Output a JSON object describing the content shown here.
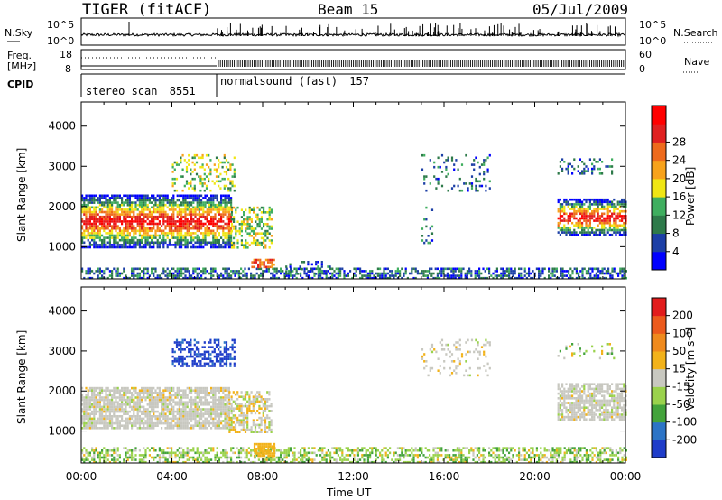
{
  "header": {
    "title": "TIGER (fitACF)",
    "beam": "Beam 15",
    "date": "05/Jul/2009"
  },
  "noise_panel": {
    "left_label": "N.Sky",
    "left_ticks": [
      "10^5",
      "10^0"
    ],
    "right_label": "N.Search",
    "right_ticks": [
      "10^5",
      "10^0"
    ]
  },
  "freq_panel": {
    "left_label_line1": "Freq.",
    "left_label_line2": "[MHz]",
    "left_ticks": [
      "18",
      "8"
    ],
    "right_label": "Nave",
    "right_ticks": [
      "60",
      "0"
    ]
  },
  "cpid_panel": {
    "label": "CPID",
    "modes": [
      {
        "name": "stereo_scan",
        "id": "8551"
      },
      {
        "name": "normalsound (fast)",
        "id": "157"
      }
    ]
  },
  "chart_data": [
    {
      "type": "heatmap",
      "title": "",
      "ylabel": "Slant Range [km]",
      "yticks": [
        "1000",
        "2000",
        "3000",
        "4000"
      ],
      "ylim": [
        200,
        4600
      ],
      "xlabel": "Time UT",
      "xticks": [
        "00:00",
        "04:00",
        "08:00",
        "12:00",
        "16:00",
        "20:00",
        "00:00"
      ],
      "colorbar": {
        "label": "Power [dB]",
        "ticks": [
          "4",
          "8",
          "12",
          "16",
          "20",
          "24",
          "28"
        ],
        "colors": [
          "#0000ff",
          "#1c3fa6",
          "#2e7a4a",
          "#3fae5f",
          "#f0e614",
          "#f7a21b",
          "#ee6a1c",
          "#e02020",
          "#ff0000"
        ]
      }
    },
    {
      "type": "heatmap",
      "title": "",
      "ylabel": "Slant Range [km]",
      "yticks": [
        "1000",
        "2000",
        "3000",
        "4000"
      ],
      "ylim": [
        200,
        4600
      ],
      "xlabel": "Time UT",
      "xticks": [
        "00:00",
        "04:00",
        "08:00",
        "12:00",
        "16:00",
        "20:00",
        "00:00"
      ],
      "colorbar": {
        "label": "Velocity [m s⁻¹]",
        "ticks": [
          "200",
          "100",
          "50",
          "15",
          "-15",
          "-50",
          "-100",
          "-200"
        ],
        "colors": [
          "#1f3dc9",
          "#2c74c6",
          "#43a33b",
          "#9ad24c",
          "#c8c8c0",
          "#f2b21a",
          "#ef8a1d",
          "#ec5a1c",
          "#e21c1c"
        ]
      }
    }
  ],
  "axis": {
    "xlabel": "Time UT"
  },
  "colors": {
    "background": "#ffffff",
    "axis": "#000000"
  }
}
